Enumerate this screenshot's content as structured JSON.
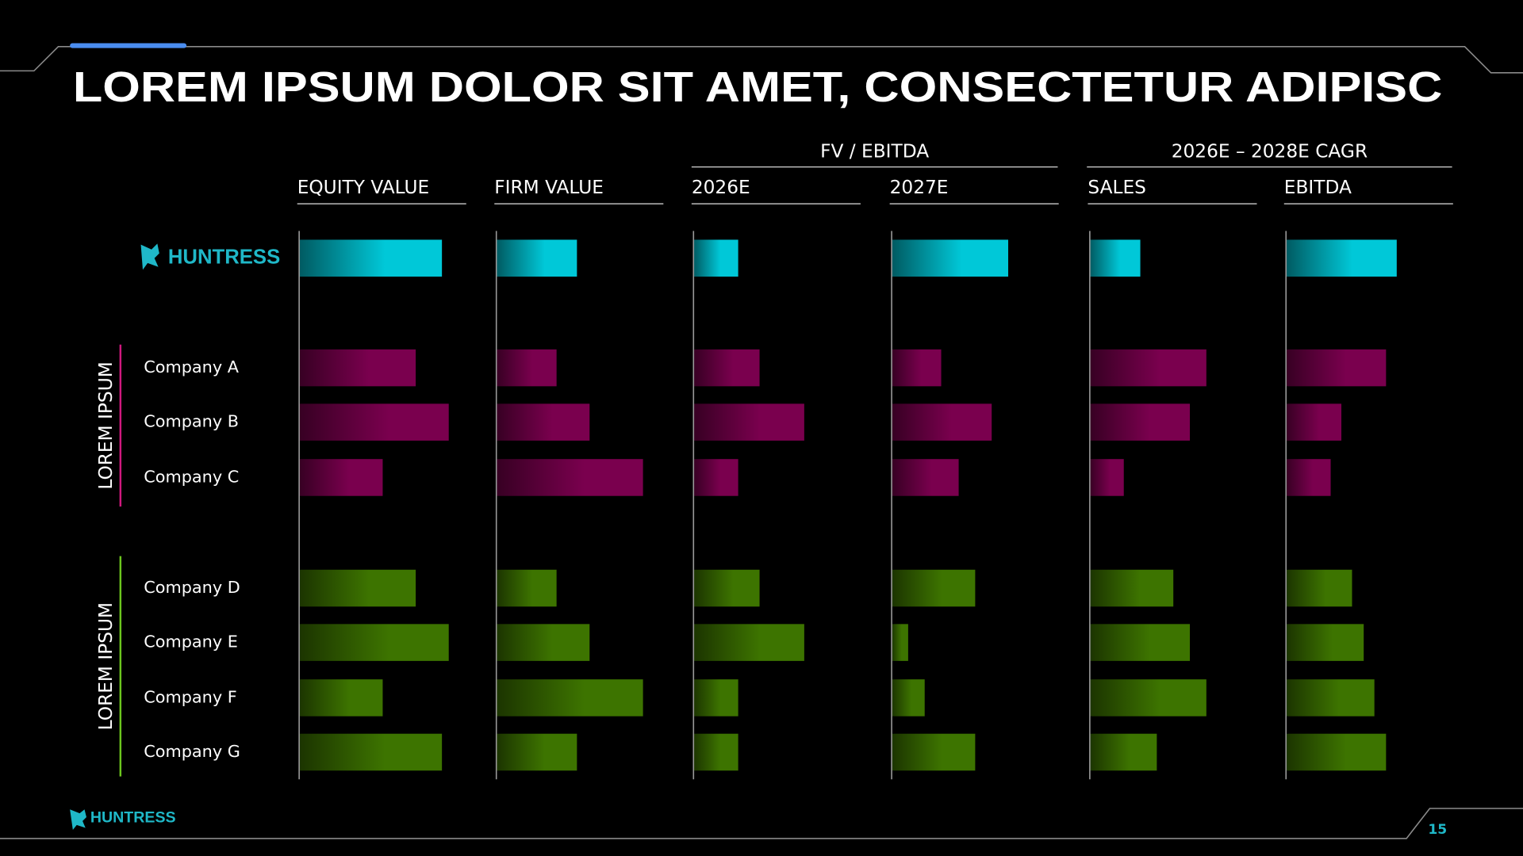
{
  "chart_data": {
    "type": "bar",
    "orientation": "horizontal",
    "title": "LOREM IPSUM DOLOR SIT AMET, CONSECTETUR ADIPISC",
    "categories": [
      "HUNTRESS",
      "Company A",
      "Company B",
      "Company C",
      "Company D",
      "Company E",
      "Company F",
      "Company G"
    ],
    "colors": [
      "#00c8d8",
      "#7a004e",
      "#7a004e",
      "#7a004e",
      "#3d7400",
      "#3d7400",
      "#3d7400",
      "#3d7400"
    ],
    "groups": [
      {
        "label": "LOREM IPSUM",
        "color": "#d0187e"
      },
      {
        "label": "LOREM IPSUM",
        "color": "#6cc71e"
      }
    ],
    "column_groups": [
      {
        "label": "FV / EBITDA"
      },
      {
        "label": "2026E – 2028E CAGR"
      }
    ],
    "series": [
      {
        "name": "EQUITY VALUE",
        "values": [
          147,
          120,
          154,
          86,
          120,
          154,
          86,
          147
        ]
      },
      {
        "name": "FIRM VALUE",
        "values": [
          83,
          62,
          96,
          151,
          62,
          96,
          151,
          83
        ]
      },
      {
        "name": "2026E",
        "values": [
          46,
          68,
          114,
          46,
          68,
          114,
          46,
          46
        ]
      },
      {
        "name": "2027E",
        "values": [
          120,
          51,
          103,
          69,
          86,
          17,
          34,
          86
        ]
      },
      {
        "name": "SALES",
        "values": [
          52,
          120,
          103,
          35,
          86,
          103,
          120,
          69
        ]
      },
      {
        "name": "EBITDA",
        "values": [
          114,
          103,
          57,
          46,
          68,
          80,
          91,
          103
        ]
      }
    ]
  },
  "footer": {
    "logo": "HUNTRESS",
    "page": "15"
  }
}
